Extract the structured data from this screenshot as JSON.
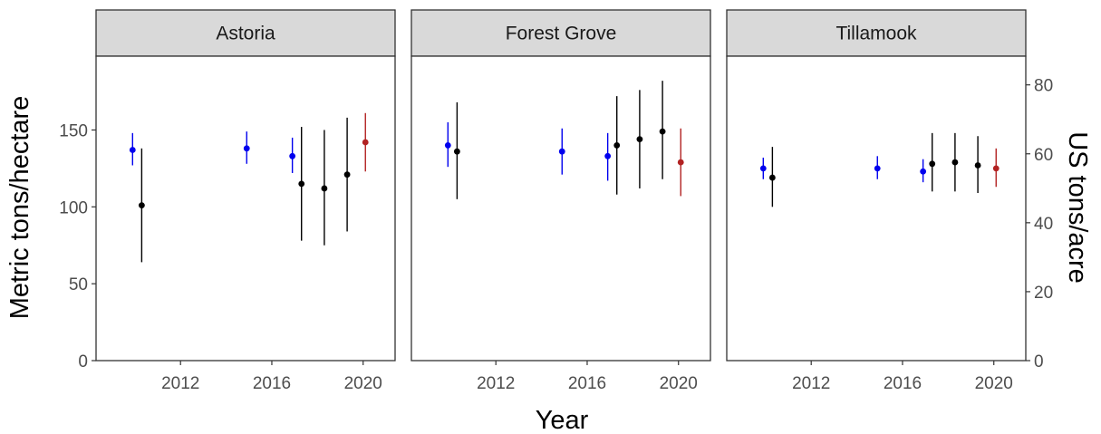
{
  "chart_data": {
    "type": "scatter",
    "subtype": "point-range faceted",
    "xlabel": "Year",
    "ylabel": "Metric tons/hectare",
    "ylabel_secondary": "US tons/acre",
    "xlim": [
      2008.3,
      2021.4
    ],
    "ylim": [
      0,
      198
    ],
    "ylim_secondary_note": "secondary axis = primary / 2.2417",
    "xticks": [
      2012,
      2016,
      2020
    ],
    "yticks": [
      0,
      50,
      100,
      150
    ],
    "yticks_secondary": [
      0,
      20,
      40,
      60,
      80
    ],
    "grid": false,
    "legend": "none",
    "colors": {
      "blue": "#0000ee",
      "black": "#000000",
      "red": "#b22222"
    },
    "panels": [
      {
        "name": "Astoria",
        "points": [
          {
            "x": 2009.9,
            "y": 137,
            "ymin": 127,
            "ymax": 148,
            "color": "blue"
          },
          {
            "x": 2010.3,
            "y": 101,
            "ymin": 64,
            "ymax": 138,
            "color": "black"
          },
          {
            "x": 2014.9,
            "y": 138,
            "ymin": 128,
            "ymax": 149,
            "color": "blue"
          },
          {
            "x": 2016.9,
            "y": 133,
            "ymin": 122,
            "ymax": 145,
            "color": "blue"
          },
          {
            "x": 2017.3,
            "y": 115,
            "ymin": 78,
            "ymax": 152,
            "color": "black"
          },
          {
            "x": 2018.3,
            "y": 112,
            "ymin": 75,
            "ymax": 150,
            "color": "black"
          },
          {
            "x": 2019.3,
            "y": 121,
            "ymin": 84,
            "ymax": 158,
            "color": "black"
          },
          {
            "x": 2020.1,
            "y": 142,
            "ymin": 123,
            "ymax": 161,
            "color": "red"
          }
        ]
      },
      {
        "name": "Forest Grove",
        "points": [
          {
            "x": 2009.9,
            "y": 140,
            "ymin": 126,
            "ymax": 155,
            "color": "blue"
          },
          {
            "x": 2010.3,
            "y": 136,
            "ymin": 105,
            "ymax": 168,
            "color": "black"
          },
          {
            "x": 2014.9,
            "y": 136,
            "ymin": 121,
            "ymax": 151,
            "color": "blue"
          },
          {
            "x": 2016.9,
            "y": 133,
            "ymin": 117,
            "ymax": 148,
            "color": "blue"
          },
          {
            "x": 2017.3,
            "y": 140,
            "ymin": 108,
            "ymax": 172,
            "color": "black"
          },
          {
            "x": 2018.3,
            "y": 144,
            "ymin": 112,
            "ymax": 176,
            "color": "black"
          },
          {
            "x": 2019.3,
            "y": 149,
            "ymin": 118,
            "ymax": 182,
            "color": "black"
          },
          {
            "x": 2020.1,
            "y": 129,
            "ymin": 107,
            "ymax": 151,
            "color": "red"
          }
        ]
      },
      {
        "name": "Tillamook",
        "points": [
          {
            "x": 2009.9,
            "y": 125,
            "ymin": 118,
            "ymax": 132,
            "color": "blue"
          },
          {
            "x": 2010.3,
            "y": 119,
            "ymin": 100,
            "ymax": 139,
            "color": "black"
          },
          {
            "x": 2014.9,
            "y": 125,
            "ymin": 118,
            "ymax": 133,
            "color": "blue"
          },
          {
            "x": 2016.9,
            "y": 123,
            "ymin": 116,
            "ymax": 131,
            "color": "blue"
          },
          {
            "x": 2017.3,
            "y": 128,
            "ymin": 110,
            "ymax": 148,
            "color": "black"
          },
          {
            "x": 2018.3,
            "y": 129,
            "ymin": 110,
            "ymax": 148,
            "color": "black"
          },
          {
            "x": 2019.3,
            "y": 127,
            "ymin": 109,
            "ymax": 146,
            "color": "black"
          },
          {
            "x": 2020.1,
            "y": 125,
            "ymin": 113,
            "ymax": 138,
            "color": "red"
          }
        ]
      }
    ]
  }
}
